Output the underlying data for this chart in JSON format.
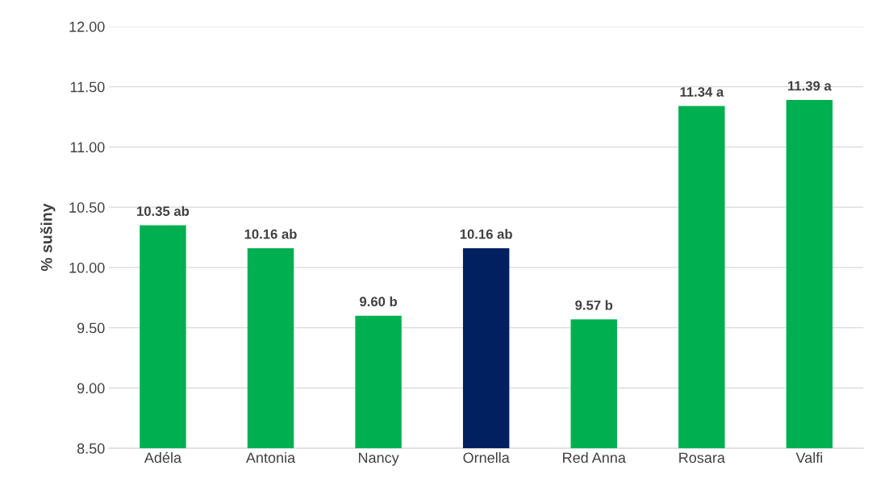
{
  "chart_data": {
    "type": "bar",
    "ylabel": "% sušiny",
    "categories": [
      "Adéla",
      "Antonia",
      "Nancy",
      "Ornella",
      "Red Anna",
      "Rosara",
      "Valfi"
    ],
    "values": [
      10.35,
      10.16,
      9.6,
      10.16,
      9.57,
      11.34,
      11.39
    ],
    "colors": [
      "#00b050",
      "#00b050",
      "#00b050",
      "#002060",
      "#00b050",
      "#00b050",
      "#00b050"
    ],
    "value_labels": [
      "10.35 ab",
      "10.16 ab",
      "9.60 b",
      "10.16 ab",
      "9.57 b",
      "11.34 a",
      "11.39 a"
    ],
    "ylim": [
      8.5,
      12
    ],
    "yticks": [
      {
        "value": 8.5,
        "label": "8.50"
      },
      {
        "value": 9,
        "label": "9.00"
      },
      {
        "value": 9.5,
        "label": "9.50"
      },
      {
        "value": 10,
        "label": "10.00"
      },
      {
        "value": 10.5,
        "label": "10.50"
      },
      {
        "value": 11,
        "label": "11.00"
      },
      {
        "value": 11.5,
        "label": "11.50"
      },
      {
        "value": 12,
        "label": "12.00"
      }
    ],
    "grid": "y"
  }
}
